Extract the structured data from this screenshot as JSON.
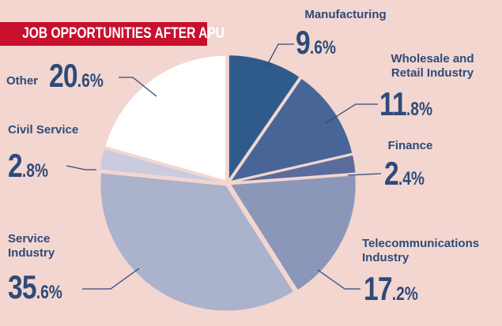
{
  "chart_data": {
    "type": "pie",
    "title": "JOB OPPORTUNITIES AFTER APU",
    "categories": [
      "Manufacturing",
      "Wholesale and Retail Industry",
      "Finance",
      "Telecommunications Industry",
      "Service Industry",
      "Civil Service",
      "Other"
    ],
    "values": [
      9.6,
      11.8,
      2.4,
      17.2,
      35.6,
      2.8,
      20.6
    ],
    "value_labels": [
      "9.6%",
      "11.8%",
      "2.4%",
      "17.2%",
      "35.6%",
      "2.8%",
      "20.6%"
    ],
    "colors": [
      "#2f5b8c",
      "#486597",
      "#5a6c9b",
      "#8a97b9",
      "#aab2cc",
      "#c9cbdf",
      "#ffffff"
    ]
  }
}
